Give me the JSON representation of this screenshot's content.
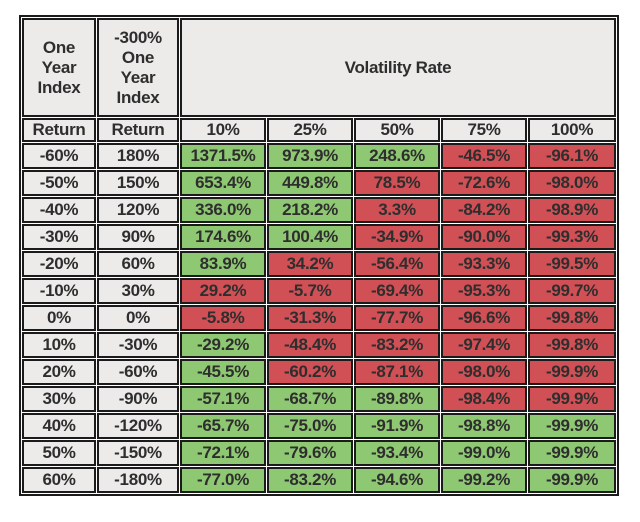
{
  "colors": {
    "green": "#8FC873",
    "red": "#D05055",
    "label_bg": "#ECEBE9",
    "border": "#1B1B1B",
    "text": "#2E2E2E"
  },
  "chart_data": {
    "type": "table",
    "header": {
      "col1_title": "One\nYear\nIndex",
      "col2_title": "-300%\nOne\nYear\nIndex",
      "group_label": "Volatility Rate",
      "col1_sub": "Return",
      "col2_sub": "Return",
      "volatility_columns": [
        "10%",
        "25%",
        "50%",
        "75%",
        "100%"
      ]
    },
    "rows": [
      {
        "index_return": "-60%",
        "leveraged_return": "180%",
        "values": [
          "1371.5%",
          "973.9%",
          "248.6%",
          "-46.5%",
          "-96.1%"
        ],
        "colors": [
          "green",
          "green",
          "green",
          "red",
          "red"
        ]
      },
      {
        "index_return": "-50%",
        "leveraged_return": "150%",
        "values": [
          "653.4%",
          "449.8%",
          "78.5%",
          "-72.6%",
          "-98.0%"
        ],
        "colors": [
          "green",
          "green",
          "red",
          "red",
          "red"
        ]
      },
      {
        "index_return": "-40%",
        "leveraged_return": "120%",
        "values": [
          "336.0%",
          "218.2%",
          "3.3%",
          "-84.2%",
          "-98.9%"
        ],
        "colors": [
          "green",
          "green",
          "red",
          "red",
          "red"
        ]
      },
      {
        "index_return": "-30%",
        "leveraged_return": "90%",
        "values": [
          "174.6%",
          "100.4%",
          "-34.9%",
          "-90.0%",
          "-99.3%"
        ],
        "colors": [
          "green",
          "green",
          "red",
          "red",
          "red"
        ]
      },
      {
        "index_return": "-20%",
        "leveraged_return": "60%",
        "values": [
          "83.9%",
          "34.2%",
          "-56.4%",
          "-93.3%",
          "-99.5%"
        ],
        "colors": [
          "green",
          "red",
          "red",
          "red",
          "red"
        ]
      },
      {
        "index_return": "-10%",
        "leveraged_return": "30%",
        "values": [
          "29.2%",
          "-5.7%",
          "-69.4%",
          "-95.3%",
          "-99.7%"
        ],
        "colors": [
          "red",
          "red",
          "red",
          "red",
          "red"
        ]
      },
      {
        "index_return": "0%",
        "leveraged_return": "0%",
        "values": [
          "-5.8%",
          "-31.3%",
          "-77.7%",
          "-96.6%",
          "-99.8%"
        ],
        "colors": [
          "red",
          "red",
          "red",
          "red",
          "red"
        ]
      },
      {
        "index_return": "10%",
        "leveraged_return": "-30%",
        "values": [
          "-29.2%",
          "-48.4%",
          "-83.2%",
          "-97.4%",
          "-99.8%"
        ],
        "colors": [
          "green",
          "red",
          "red",
          "red",
          "red"
        ]
      },
      {
        "index_return": "20%",
        "leveraged_return": "-60%",
        "values": [
          "-45.5%",
          "-60.2%",
          "-87.1%",
          "-98.0%",
          "-99.9%"
        ],
        "colors": [
          "green",
          "red",
          "red",
          "red",
          "red"
        ]
      },
      {
        "index_return": "30%",
        "leveraged_return": "-90%",
        "values": [
          "-57.1%",
          "-68.7%",
          "-89.8%",
          "-98.4%",
          "-99.9%"
        ],
        "colors": [
          "green",
          "green",
          "green",
          "red",
          "red"
        ]
      },
      {
        "index_return": "40%",
        "leveraged_return": "-120%",
        "values": [
          "-65.7%",
          "-75.0%",
          "-91.9%",
          "-98.8%",
          "-99.9%"
        ],
        "colors": [
          "green",
          "green",
          "green",
          "green",
          "green"
        ]
      },
      {
        "index_return": "50%",
        "leveraged_return": "-150%",
        "values": [
          "-72.1%",
          "-79.6%",
          "-93.4%",
          "-99.0%",
          "-99.9%"
        ],
        "colors": [
          "green",
          "green",
          "green",
          "green",
          "green"
        ]
      },
      {
        "index_return": "60%",
        "leveraged_return": "-180%",
        "values": [
          "-77.0%",
          "-83.2%",
          "-94.6%",
          "-99.2%",
          "-99.9%"
        ],
        "colors": [
          "green",
          "green",
          "green",
          "green",
          "green"
        ]
      }
    ]
  }
}
